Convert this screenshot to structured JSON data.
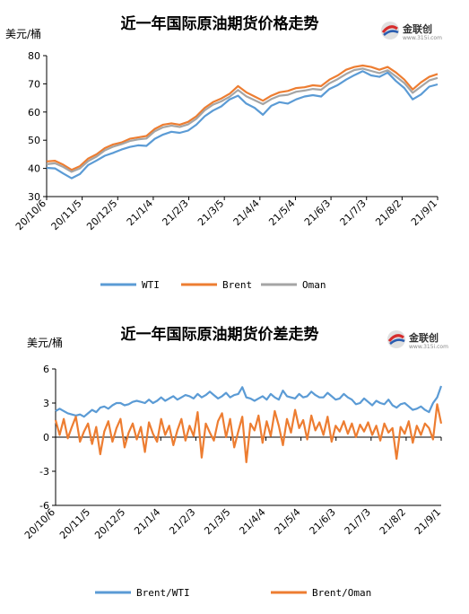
{
  "logo": {
    "text": "金联创",
    "sub": "www.315i.com"
  },
  "chart_data": [
    {
      "type": "line",
      "title": "近一年国际原油期货价格走势",
      "ylabel": "美元/桶",
      "xlabel": "",
      "ylim": [
        30,
        80
      ],
      "yticks": [
        30,
        40,
        50,
        60,
        70,
        80
      ],
      "xtick_labels": [
        "20/10/6",
        "20/11/5",
        "20/12/5",
        "21/1/4",
        "21/2/3",
        "21/3/5",
        "21/4/4",
        "21/5/4",
        "21/6/3",
        "21/7/3",
        "21/8/2",
        "21/9/1"
      ],
      "grid": false,
      "legend_position": "bottom",
      "x_count": 48,
      "series": [
        {
          "name": "WTI",
          "color": "#5B9BD5",
          "values": [
            40.2,
            40.0,
            38.2,
            36.5,
            38.0,
            41.2,
            42.8,
            44.5,
            45.5,
            46.7,
            47.6,
            48.2,
            48.0,
            50.5,
            52.0,
            53.0,
            52.6,
            53.4,
            55.5,
            58.5,
            60.5,
            62.0,
            64.5,
            65.8,
            63.0,
            61.5,
            59.0,
            62.2,
            63.5,
            63.0,
            64.5,
            65.5,
            66.0,
            65.5,
            68.2,
            69.6,
            71.5,
            73.1,
            74.5,
            73.0,
            72.5,
            74.0,
            71.0,
            68.5,
            64.5,
            66.2,
            69.0,
            69.8
          ]
        },
        {
          "name": "Brent",
          "color": "#ED7D31",
          "values": [
            42.5,
            42.7,
            41.3,
            39.5,
            40.8,
            43.5,
            45.0,
            47.2,
            48.5,
            49.2,
            50.5,
            51.0,
            51.5,
            54.0,
            55.5,
            56.0,
            55.5,
            56.5,
            58.5,
            61.5,
            63.5,
            64.8,
            66.5,
            69.2,
            67.0,
            65.5,
            64.0,
            65.8,
            67.0,
            67.5,
            68.5,
            68.8,
            69.5,
            69.2,
            71.5,
            73.0,
            75.0,
            76.0,
            76.5,
            76.0,
            75.0,
            76.0,
            74.0,
            71.5,
            68.0,
            70.5,
            72.5,
            73.5
          ]
        },
        {
          "name": "Oman",
          "color": "#A5A5A5",
          "values": [
            41.5,
            41.8,
            40.5,
            38.8,
            40.0,
            42.6,
            44.2,
            46.4,
            47.7,
            48.6,
            49.7,
            50.3,
            50.6,
            53.2,
            54.6,
            55.2,
            54.7,
            55.6,
            57.6,
            60.6,
            62.6,
            63.8,
            65.4,
            67.8,
            65.6,
            64.2,
            62.8,
            64.6,
            65.8,
            66.1,
            67.2,
            67.6,
            68.2,
            67.9,
            70.2,
            71.7,
            73.5,
            74.9,
            75.4,
            74.6,
            73.8,
            74.8,
            72.6,
            70.3,
            66.8,
            69.0,
            71.2,
            72.1
          ]
        }
      ]
    },
    {
      "type": "line",
      "title": "近一年国际原油期货价差走势",
      "ylabel": "美元/桶",
      "xlabel": "",
      "ylim": [
        -6,
        6
      ],
      "yticks": [
        -6,
        -3,
        0,
        3,
        6
      ],
      "xtick_labels": [
        "20/10/6",
        "20/11/5",
        "20/12/5",
        "21/1/4",
        "21/2/3",
        "21/3/5",
        "21/4/4",
        "21/5/4",
        "21/6/3",
        "21/7/3",
        "21/8/2",
        "21/9/1"
      ],
      "grid": false,
      "legend_position": "bottom",
      "x_count": 96,
      "series": [
        {
          "name": "Brent/WTI",
          "color": "#5B9BD5",
          "values": [
            2.3,
            2.5,
            2.3,
            2.1,
            2.0,
            1.9,
            2.0,
            1.8,
            2.1,
            2.4,
            2.2,
            2.6,
            2.7,
            2.5,
            2.8,
            3.0,
            3.0,
            2.8,
            2.9,
            3.1,
            3.2,
            3.1,
            3.0,
            3.3,
            3.0,
            3.2,
            3.5,
            3.2,
            3.4,
            3.6,
            3.3,
            3.5,
            3.7,
            3.6,
            3.4,
            3.8,
            3.5,
            3.7,
            4.0,
            3.7,
            3.4,
            3.6,
            3.9,
            3.5,
            3.7,
            3.8,
            4.4,
            3.5,
            3.4,
            3.2,
            3.4,
            3.6,
            3.3,
            3.8,
            3.5,
            3.3,
            4.1,
            3.6,
            3.5,
            3.4,
            3.8,
            3.5,
            3.6,
            4.0,
            3.7,
            3.5,
            3.5,
            3.9,
            3.6,
            3.3,
            3.4,
            3.8,
            3.5,
            3.3,
            2.9,
            3.0,
            3.4,
            3.1,
            2.8,
            3.2,
            3.0,
            2.9,
            3.3,
            2.8,
            2.6,
            2.9,
            3.0,
            2.7,
            2.4,
            2.5,
            2.7,
            2.4,
            2.2,
            3.0,
            3.5,
            4.5
          ]
        },
        {
          "name": "Brent/Oman",
          "color": "#ED7D31",
          "values": [
            1.5,
            0.2,
            1.6,
            -0.1,
            0.9,
            1.8,
            -0.4,
            0.5,
            1.2,
            -0.6,
            0.9,
            -1.5,
            0.5,
            1.4,
            -0.4,
            0.8,
            1.6,
            -0.9,
            0.4,
            1.2,
            -0.2,
            0.9,
            -1.3,
            1.3,
            0.3,
            -0.4,
            1.6,
            0.2,
            1.0,
            -0.7,
            0.6,
            1.6,
            -0.3,
            1.0,
            0.1,
            2.2,
            -1.8,
            1.2,
            0.4,
            -0.3,
            1.4,
            2.1,
            0.0,
            1.6,
            -0.9,
            0.5,
            1.8,
            -2.2,
            1.2,
            0.6,
            1.9,
            -0.5,
            1.4,
            0.1,
            2.3,
            1.0,
            -0.7,
            1.6,
            0.4,
            2.4,
            0.8,
            1.5,
            -0.2,
            1.9,
            0.6,
            1.3,
            0.2,
            1.8,
            -0.4,
            1.0,
            0.5,
            1.4,
            0.3,
            1.2,
            0.0,
            1.1,
            0.5,
            1.3,
            0.2,
            1.0,
            -0.3,
            1.2,
            0.4,
            0.8,
            -1.9,
            0.9,
            0.3,
            1.4,
            -0.5,
            1.0,
            0.2,
            1.2,
            0.8,
            -0.2,
            2.9,
            1.2
          ]
        }
      ]
    }
  ]
}
